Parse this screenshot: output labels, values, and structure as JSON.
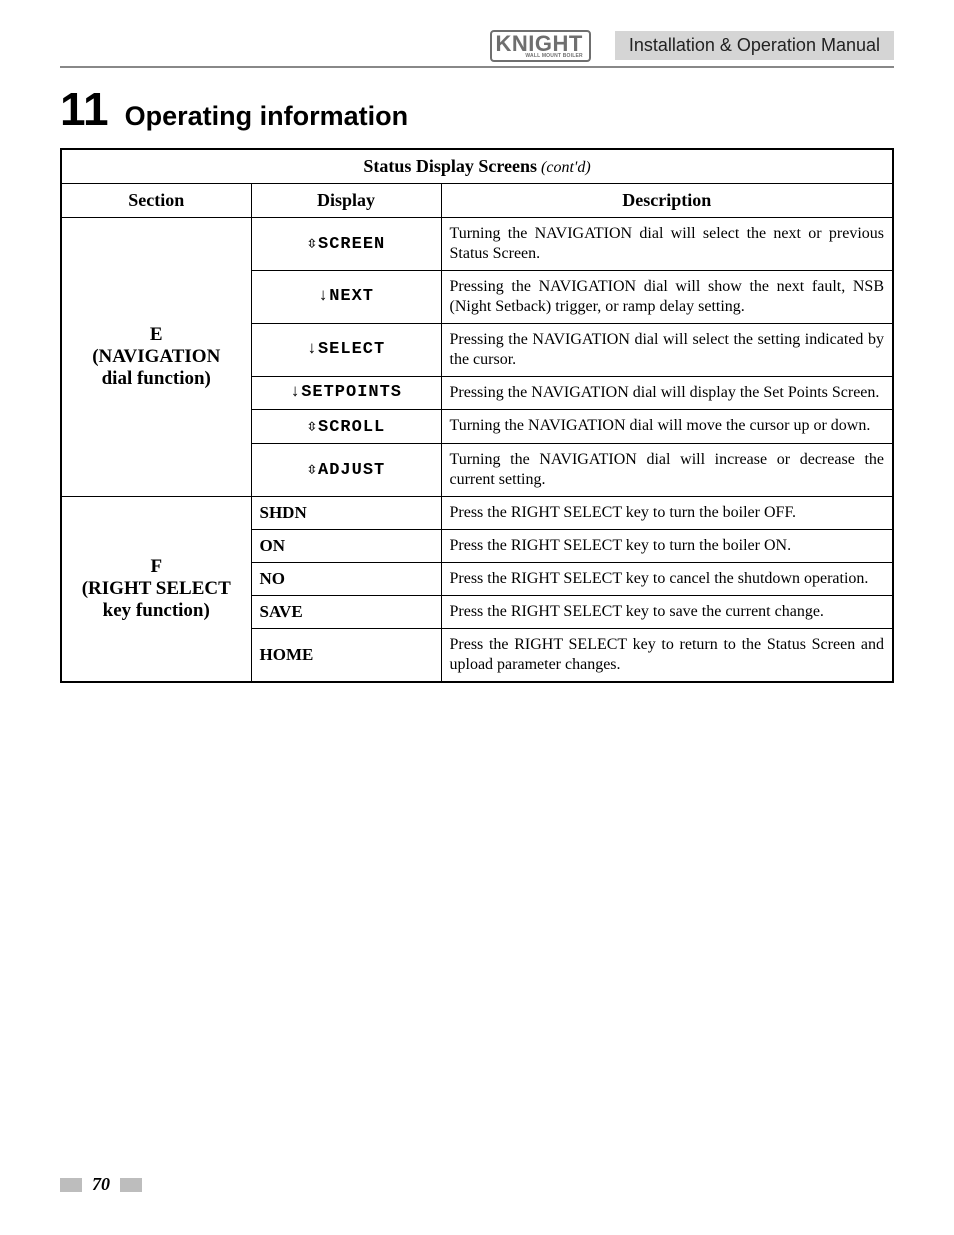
{
  "header": {
    "logo_main": "KNIGHT",
    "logo_sub": "WALL MOUNT BOILER",
    "manual_title": "Installation & Operation Manual"
  },
  "chapter": {
    "number": "11",
    "title": "Operating information"
  },
  "table": {
    "title_main": "Status Display Screens",
    "title_contd": " (cont'd)",
    "columns": [
      "Section",
      "Display",
      "Description"
    ],
    "sections": [
      {
        "label_line1": "E",
        "label_line2": "(NAVIGATION",
        "label_line3": "dial function)",
        "rows": [
          {
            "display_prefix": "⇳",
            "display_text": "SCREEN",
            "lcd": true,
            "description": "Turning the NAVIGATION dial will select the next or previous Status Screen."
          },
          {
            "display_prefix": "↓",
            "display_text": "NEXT",
            "lcd": true,
            "description": "Pressing the NAVIGATION dial will show the next fault, NSB (Night Setback) trigger, or ramp delay setting."
          },
          {
            "display_prefix": "↓",
            "display_text": "SELECT",
            "lcd": true,
            "description": "Pressing the NAVIGATION dial will select the setting indicated by the cursor."
          },
          {
            "display_prefix": "↓",
            "display_text": "SETPOINTS",
            "lcd": true,
            "description": "Pressing the NAVIGATION dial will display the Set Points Screen."
          },
          {
            "display_prefix": "⇳",
            "display_text": "SCROLL",
            "lcd": true,
            "description": "Turning the NAVIGATION dial will move the cursor up or down."
          },
          {
            "display_prefix": "⇳",
            "display_text": "ADJUST",
            "lcd": true,
            "description": "Turning the NAVIGATION dial will increase or decrease the current setting."
          }
        ]
      },
      {
        "label_line1": "F",
        "label_line2": "(RIGHT SELECT",
        "label_line3": "key function)",
        "rows": [
          {
            "display_prefix": "",
            "display_text": "SHDN",
            "lcd": false,
            "description": "Press the RIGHT SELECT key to turn the boiler OFF."
          },
          {
            "display_prefix": "",
            "display_text": "ON",
            "lcd": false,
            "description": "Press the RIGHT SELECT key to turn the boiler ON."
          },
          {
            "display_prefix": "",
            "display_text": "NO",
            "lcd": false,
            "description": "Press the RIGHT SELECT key to cancel the shutdown operation."
          },
          {
            "display_prefix": "",
            "display_text": "SAVE",
            "lcd": false,
            "description": "Press the RIGHT SELECT key to save the current change."
          },
          {
            "display_prefix": "",
            "display_text": "HOME",
            "lcd": false,
            "description": "Press the RIGHT SELECT key to return to the Status Screen and upload parameter changes."
          }
        ]
      }
    ]
  },
  "footer": {
    "page_number": "70"
  },
  "colors": {
    "header_box_bg": "#d5d5d5",
    "rule": "#888888",
    "text": "#000000",
    "logo": "#6f6f6f",
    "footer_box": "#bdbdbd"
  }
}
